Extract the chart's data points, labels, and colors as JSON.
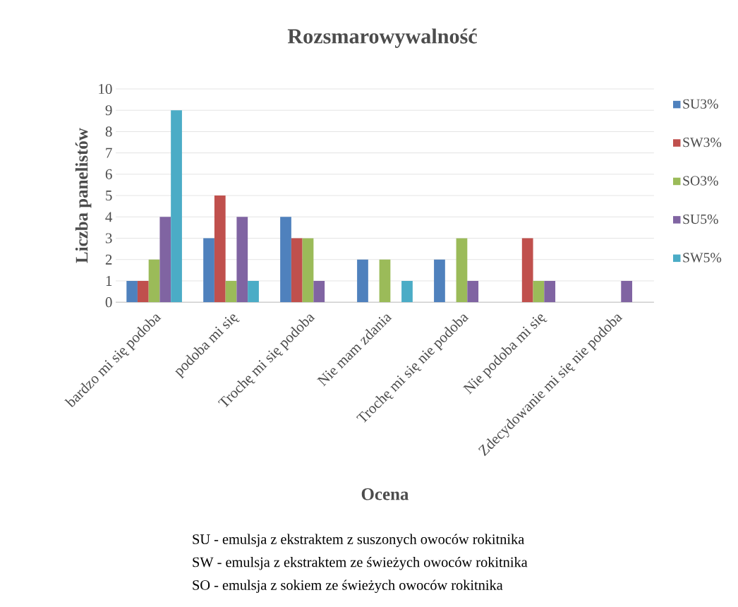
{
  "chart_data": {
    "type": "bar",
    "title": "Rozsmarowywalność",
    "xlabel": "Ocena",
    "ylabel": "Liczba panelistów",
    "categories": [
      "bardzo mi się podoba",
      "podoba mi się",
      "Trochę mi się podoba",
      "Nie mam zdania",
      "Trochę mi się nie podoba",
      "Nie podoba mi się",
      "Zdecydowanie mi się nie podoba"
    ],
    "series": [
      {
        "name": "SU3%",
        "color": "#4f81bd",
        "values": [
          1,
          3,
          4,
          2,
          2,
          0,
          0
        ]
      },
      {
        "name": "SW3%",
        "color": "#c0504d",
        "values": [
          1,
          5,
          3,
          0,
          0,
          3,
          0
        ]
      },
      {
        "name": "SO3%",
        "color": "#9bbb59",
        "values": [
          2,
          1,
          3,
          2,
          3,
          1,
          0
        ]
      },
      {
        "name": "SU5%",
        "color": "#8064a2",
        "values": [
          4,
          4,
          1,
          0,
          1,
          1,
          1
        ]
      },
      {
        "name": "SW5%",
        "color": "#4bacc6",
        "values": [
          9,
          1,
          0,
          1,
          0,
          0,
          0
        ]
      }
    ],
    "ylim": [
      0,
      10
    ],
    "yticks": [
      0,
      1,
      2,
      3,
      4,
      5,
      6,
      7,
      8,
      9,
      10
    ],
    "grid": "y",
    "legend": "right",
    "annotations": [
      "SU - emulsja z ekstraktem z suszonych owoców rokitnika",
      "SW - emulsja z ekstraktem ze świeżych owoców rokitnika",
      "SO - emulsja z sokiem ze świeżych owoców rokitnika"
    ]
  }
}
